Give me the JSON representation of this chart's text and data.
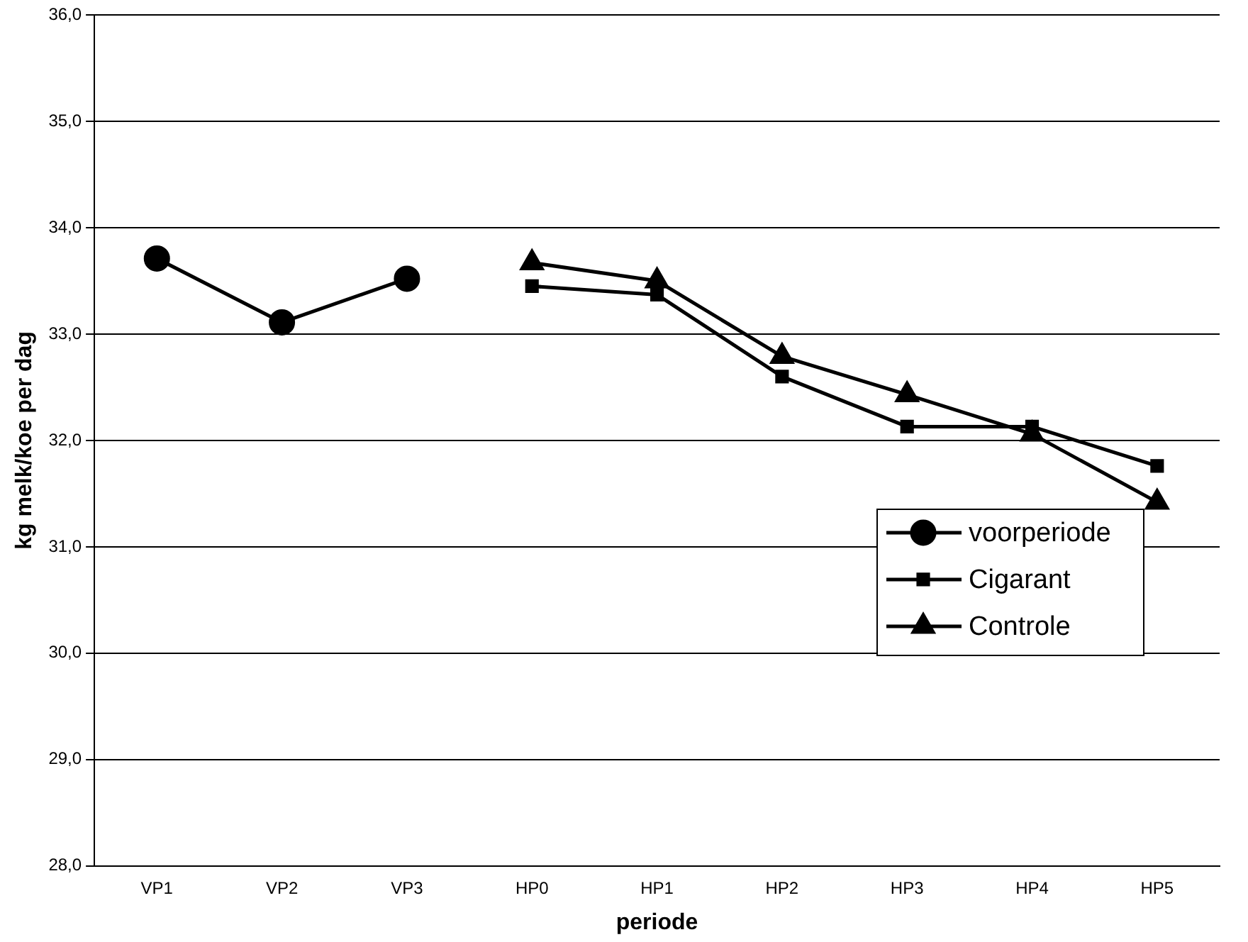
{
  "chart_data": {
    "type": "line",
    "xlabel": "periode",
    "ylabel": "kg melk/koe per dag",
    "categories": [
      "VP1",
      "VP2",
      "VP3",
      "HP0",
      "HP1",
      "HP2",
      "HP3",
      "HP4",
      "HP5"
    ],
    "series": [
      {
        "name": "voorperiode",
        "color": "#000000",
        "marker": "circle",
        "values": [
          33.71,
          33.11,
          33.52,
          null,
          null,
          null,
          null,
          null,
          null
        ]
      },
      {
        "name": "Cigarant",
        "color": "#000000",
        "marker": "square",
        "values": [
          null,
          null,
          null,
          33.45,
          33.37,
          32.6,
          32.13,
          32.13,
          31.76
        ]
      },
      {
        "name": "Controle",
        "color": "#000000",
        "marker": "triangle",
        "values": [
          null,
          null,
          null,
          33.67,
          33.5,
          32.79,
          32.43,
          32.06,
          31.42
        ]
      }
    ],
    "ylim": [
      28,
      36
    ],
    "yticks": [
      {
        "value": 28,
        "label": "28,0"
      },
      {
        "value": 29,
        "label": "29,0"
      },
      {
        "value": 30,
        "label": "30,0"
      },
      {
        "value": 31,
        "label": "31,0"
      },
      {
        "value": 32,
        "label": "32,0"
      },
      {
        "value": 33,
        "label": "33,0"
      },
      {
        "value": 34,
        "label": "34,0"
      },
      {
        "value": 35,
        "label": "35,0"
      },
      {
        "value": 36,
        "label": "36,0"
      }
    ],
    "grid": "y",
    "legend": "right",
    "line_style": "solid"
  }
}
